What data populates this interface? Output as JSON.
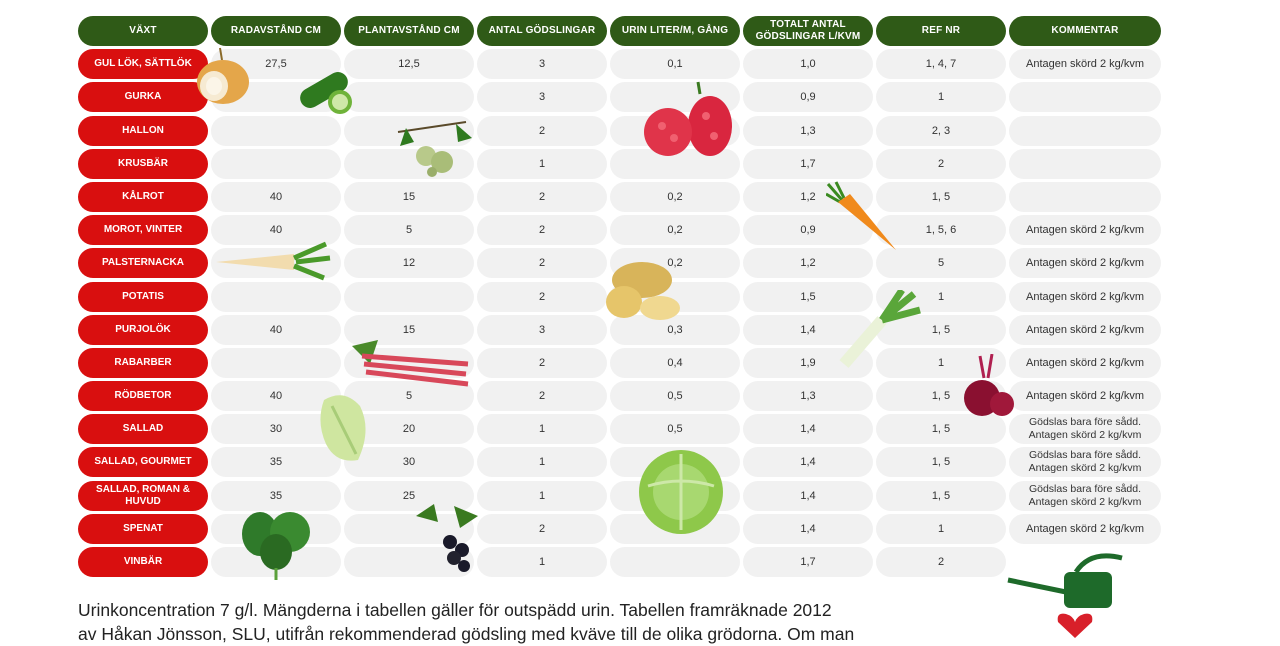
{
  "headers": [
    "VÄXT",
    "RADAVSTÅND CM",
    "PLANTAVSTÅND CM",
    "ANTAL GÖDSLINGAR",
    "URIN LITER/M, GÅNG",
    "TOTALT ANTAL GÖDSLINGAR L/KVM",
    "REF NR",
    "KOMMENTAR"
  ],
  "rows": [
    {
      "name": "GUL LÖK, SÄTTLÖK",
      "rad": "27,5",
      "plant": "12,5",
      "antal": "3",
      "urin": "0,1",
      "totalt": "1,0",
      "ref": "1, 4, 7",
      "kommentar": "Antagen skörd 2 kg/kvm"
    },
    {
      "name": "GURKA",
      "rad": "",
      "plant": "",
      "antal": "3",
      "urin": "",
      "totalt": "0,9",
      "ref": "1",
      "kommentar": ""
    },
    {
      "name": "HALLON",
      "rad": "",
      "plant": "",
      "antal": "2",
      "urin": "",
      "totalt": "1,3",
      "ref": "2, 3",
      "kommentar": ""
    },
    {
      "name": "KRUSBÄR",
      "rad": "",
      "plant": "",
      "antal": "1",
      "urin": "",
      "totalt": "1,7",
      "ref": "2",
      "kommentar": ""
    },
    {
      "name": "KÅLROT",
      "rad": "40",
      "plant": "15",
      "antal": "2",
      "urin": "0,2",
      "totalt": "1,2",
      "ref": "1, 5",
      "kommentar": ""
    },
    {
      "name": "MOROT, VINTER",
      "rad": "40",
      "plant": "5",
      "antal": "2",
      "urin": "0,2",
      "totalt": "0,9",
      "ref": "1, 5, 6",
      "kommentar": "Antagen skörd 2 kg/kvm"
    },
    {
      "name": "PALSTERNACKA",
      "rad": "",
      "plant": "12",
      "antal": "2",
      "urin": "0,2",
      "totalt": "1,2",
      "ref": "5",
      "kommentar": "Antagen skörd 2 kg/kvm"
    },
    {
      "name": "POTATIS",
      "rad": "",
      "plant": "",
      "antal": "2",
      "urin": "",
      "totalt": "1,5",
      "ref": "1",
      "kommentar": "Antagen skörd 2 kg/kvm"
    },
    {
      "name": "PURJOLÖK",
      "rad": "40",
      "plant": "15",
      "antal": "3",
      "urin": "0,3",
      "totalt": "1,4",
      "ref": "1, 5",
      "kommentar": "Antagen skörd 2 kg/kvm"
    },
    {
      "name": "RABARBER",
      "rad": "",
      "plant": "",
      "antal": "2",
      "urin": "0,4",
      "totalt": "1,9",
      "ref": "1",
      "kommentar": "Antagen skörd 2 kg/kvm"
    },
    {
      "name": "RÖDBETOR",
      "rad": "40",
      "plant": "5",
      "antal": "2",
      "urin": "0,5",
      "totalt": "1,3",
      "ref": "1, 5",
      "kommentar": "Antagen skörd 2 kg/kvm"
    },
    {
      "name": "SALLAD",
      "rad": "30",
      "plant": "20",
      "antal": "1",
      "urin": "0,5",
      "totalt": "1,4",
      "ref": "1, 5",
      "kommentar": "Gödslas bara före sådd. Antagen skörd 2 kg/kvm"
    },
    {
      "name": "SALLAD, GOURMET",
      "rad": "35",
      "plant": "30",
      "antal": "1",
      "urin": "",
      "totalt": "1,4",
      "ref": "1, 5",
      "kommentar": "Gödslas bara före sådd. Antagen skörd 2 kg/kvm"
    },
    {
      "name": "SALLAD, ROMAN & HUVUD",
      "rad": "35",
      "plant": "25",
      "antal": "1",
      "urin": "",
      "totalt": "1,4",
      "ref": "1, 5",
      "kommentar": "Gödslas bara före sådd. Antagen skörd 2 kg/kvm"
    },
    {
      "name": "SPENAT",
      "rad": "",
      "plant": "",
      "antal": "2",
      "urin": "",
      "totalt": "1,4",
      "ref": "1",
      "kommentar": "Antagen skörd 2 kg/kvm"
    },
    {
      "name": "VINBÄR",
      "rad": "",
      "plant": "",
      "antal": "1",
      "urin": "",
      "totalt": "1,7",
      "ref": "2",
      "kommentar": ""
    }
  ],
  "footer": {
    "line1": "Urinkoncentration 7 g/l. Mängderna i tabellen gäller för outspädd urin. Tabellen framräknade 2012",
    "line2": "av Håkan Jönsson, SLU, utifrån rekommenderad gödsling med kväve till de olika grödorna. Om man"
  },
  "colors": {
    "header": "#2f5a17",
    "name": "#d90f0f",
    "cell": "#f1f1f1"
  },
  "illustrations": [
    "onion",
    "cucumber",
    "raspberry",
    "gooseberry",
    "carrot",
    "parsnip",
    "potato",
    "leek",
    "rhubarb",
    "beetroot",
    "lettuce",
    "cabbage",
    "spinach",
    "blackcurrant",
    "watering-can",
    "heart"
  ]
}
